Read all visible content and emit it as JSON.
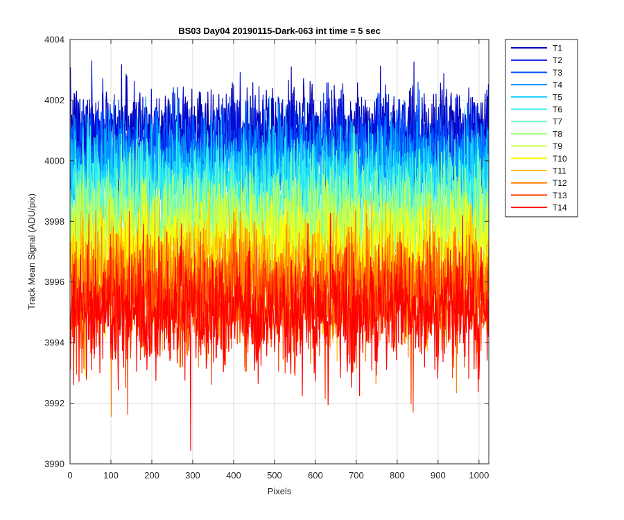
{
  "chart_data": {
    "type": "line",
    "title": "BS03 Day04 20190115-Dark-063 int time = 5 sec",
    "xlabel": "Pixels",
    "ylabel": "Track Mean Signal (ADU/pix)",
    "xlim": [
      0,
      1024
    ],
    "ylim": [
      3990,
      4004
    ],
    "xticks": [
      0,
      100,
      200,
      300,
      400,
      500,
      600,
      700,
      800,
      900,
      1000
    ],
    "yticks": [
      3990,
      3992,
      3994,
      3996,
      3998,
      4000,
      4002,
      4004
    ],
    "grid": true,
    "legend_position": "outside-top-right",
    "n_points": 1024,
    "series": [
      {
        "name": "T1",
        "color": "#0000b3",
        "mean": 4001.0,
        "spread": 0.75
      },
      {
        "name": "T2",
        "color": "#0010e0",
        "mean": 4000.7,
        "spread": 0.75
      },
      {
        "name": "T3",
        "color": "#0050ff",
        "mean": 4000.3,
        "spread": 0.75
      },
      {
        "name": "T4",
        "color": "#0090ff",
        "mean": 3999.9,
        "spread": 0.75
      },
      {
        "name": "T5",
        "color": "#10c8ff",
        "mean": 3999.5,
        "spread": 0.75
      },
      {
        "name": "T6",
        "color": "#30f0f0",
        "mean": 3999.0,
        "spread": 0.8
      },
      {
        "name": "T7",
        "color": "#70f8c0",
        "mean": 3998.5,
        "spread": 0.8
      },
      {
        "name": "T8",
        "color": "#a0ff80",
        "mean": 3998.0,
        "spread": 0.85
      },
      {
        "name": "T9",
        "color": "#d0ff40",
        "mean": 3997.5,
        "spread": 0.85
      },
      {
        "name": "T10",
        "color": "#ffff00",
        "mean": 3996.9,
        "spread": 0.9
      },
      {
        "name": "T11",
        "color": "#ffc000",
        "mean": 3996.4,
        "spread": 0.9
      },
      {
        "name": "T12",
        "color": "#ff8000",
        "mean": 3995.9,
        "spread": 0.9
      },
      {
        "name": "T13",
        "color": "#ff4000",
        "mean": 3995.4,
        "spread": 0.95
      },
      {
        "name": "T14",
        "color": "#ff0000",
        "mean": 3995.0,
        "spread": 0.95
      }
    ]
  }
}
